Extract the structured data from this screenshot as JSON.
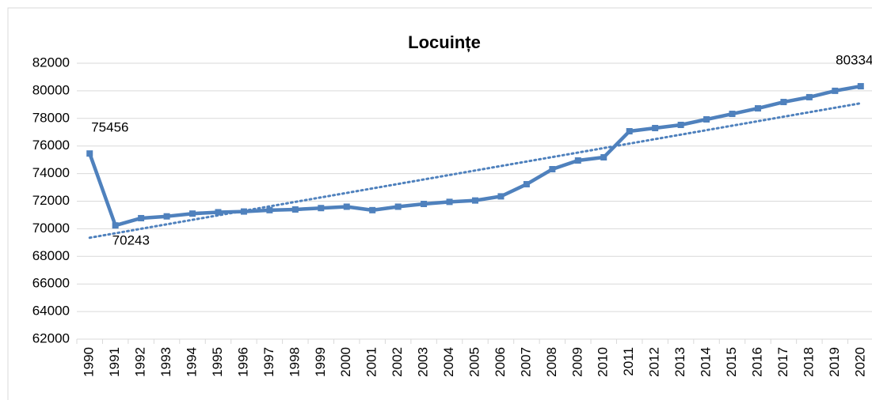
{
  "chart_data": {
    "type": "line",
    "title": "Locuințe",
    "categories": [
      "1990",
      "1991",
      "1992",
      "1993",
      "1994",
      "1995",
      "1996",
      "1997",
      "1998",
      "1999",
      "2000",
      "2001",
      "2002",
      "2003",
      "2004",
      "2005",
      "2006",
      "2007",
      "2008",
      "2009",
      "2010",
      "2011",
      "2012",
      "2013",
      "2014",
      "2015",
      "2016",
      "2017",
      "2018",
      "2019",
      "2020"
    ],
    "series": [
      {
        "color": "#4f81bd",
        "values": [
          75456,
          70243,
          70770,
          70900,
          71100,
          71200,
          71250,
          71350,
          71400,
          71500,
          71600,
          71350,
          71600,
          71800,
          71950,
          72050,
          72350,
          73230,
          74320,
          74950,
          75180,
          77070,
          77300,
          77530,
          77930,
          78330,
          78730,
          79190,
          79540,
          80000,
          80334
        ]
      }
    ],
    "labeled_points": [
      0,
      1,
      30
    ],
    "trendline": {
      "style": "dotted",
      "color": "#4f81bd",
      "values": [
        69350,
        79100
      ]
    },
    "ylim": [
      62000,
      82000
    ],
    "yticks": [
      62000,
      64000,
      66000,
      68000,
      70000,
      72000,
      74000,
      76000,
      78000,
      80000,
      82000
    ],
    "grid": true,
    "marker": "square"
  }
}
